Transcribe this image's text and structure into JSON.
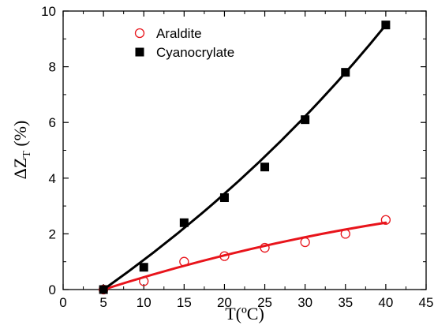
{
  "chart_data": {
    "type": "scatter",
    "xlabel": "T(ºC)",
    "ylabel": {
      "main": "ΔZ",
      "sub": "T",
      "unit": " (%)"
    },
    "xlim": [
      0,
      45
    ],
    "ylim": [
      0,
      10
    ],
    "xticks": [
      0,
      5,
      10,
      15,
      20,
      25,
      30,
      35,
      40,
      45
    ],
    "yticks": [
      0,
      2,
      4,
      6,
      8,
      10
    ],
    "grid": false,
    "legend_position": "top-center",
    "series": [
      {
        "name": "Araldite",
        "marker": "open-circle",
        "marker_color": "#e8141b",
        "fit_color": "#e8141b",
        "x": [
          5,
          10,
          15,
          20,
          25,
          30,
          35,
          40
        ],
        "y": [
          0.0,
          0.3,
          1.0,
          1.2,
          1.5,
          1.7,
          2.0,
          2.5
        ],
        "fit": {
          "x": [
            5,
            40
          ],
          "y_at": [
            0.0,
            2.4
          ],
          "curvature": "concave"
        }
      },
      {
        "name": "Cyanocrylate",
        "marker": "filled-square",
        "marker_color": "#000000",
        "fit_color": "#000000",
        "x": [
          5,
          10,
          15,
          20,
          25,
          30,
          35,
          40
        ],
        "y": [
          0.0,
          0.8,
          2.4,
          3.3,
          4.4,
          6.1,
          7.8,
          9.5
        ],
        "fit": {
          "x": [
            5,
            40
          ],
          "y_at": [
            0.0,
            9.5
          ],
          "curvature": "convex"
        }
      }
    ]
  }
}
